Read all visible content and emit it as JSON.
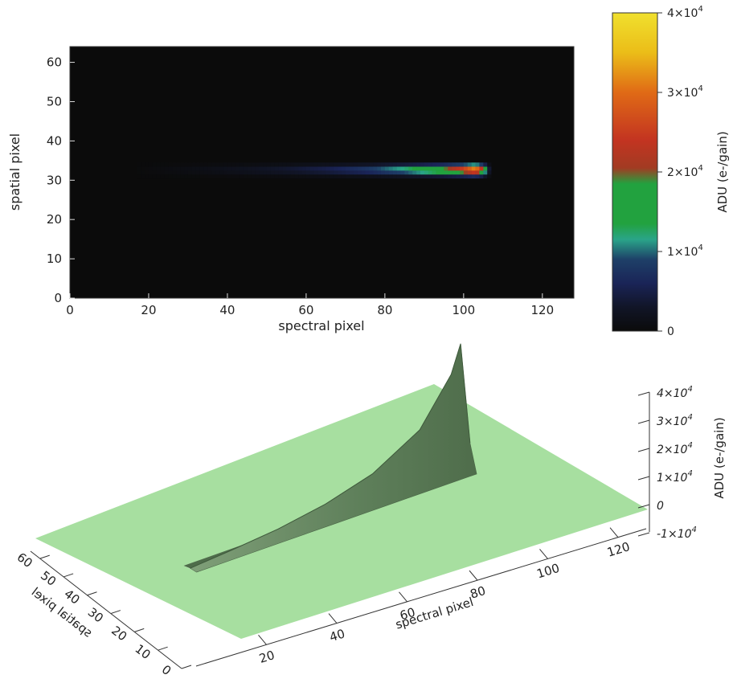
{
  "chart_data": [
    {
      "type": "heatmap",
      "xlabel": "spectral pixel",
      "ylabel": "spatial pixel",
      "xlim": [
        0,
        128
      ],
      "ylim": [
        0,
        64
      ],
      "xticks": [
        "0",
        "20",
        "40",
        "60",
        "80",
        "100",
        "120"
      ],
      "yticks": [
        "0",
        "10",
        "20",
        "30",
        "40",
        "50",
        "60"
      ],
      "background": "#0b0b0b",
      "trace": {
        "row_center": 32.5,
        "x_start": 17,
        "x_end": 107,
        "peak_x": 103,
        "peak_value": 38000,
        "profile": [
          {
            "x": 17,
            "v": 200
          },
          {
            "x": 25,
            "v": 800
          },
          {
            "x": 35,
            "v": 1500
          },
          {
            "x": 45,
            "v": 2600
          },
          {
            "x": 55,
            "v": 4000
          },
          {
            "x": 65,
            "v": 6000
          },
          {
            "x": 75,
            "v": 9000
          },
          {
            "x": 85,
            "v": 14000
          },
          {
            "x": 95,
            "v": 22000
          },
          {
            "x": 100,
            "v": 30000
          },
          {
            "x": 103,
            "v": 38000
          },
          {
            "x": 105,
            "v": 25000
          },
          {
            "x": 106,
            "v": 8000
          },
          {
            "x": 107,
            "v": 500
          }
        ]
      },
      "colorbar": {
        "label": "ADU (e-/gain)",
        "range": [
          0,
          40000
        ],
        "ticks": [
          {
            "v": 0,
            "text": "0"
          },
          {
            "v": 10000,
            "base": "1×10",
            "exp": "4"
          },
          {
            "v": 20000,
            "base": "2×10",
            "exp": "4"
          },
          {
            "v": 30000,
            "base": "3×10",
            "exp": "4"
          },
          {
            "v": 40000,
            "base": "4×10",
            "exp": "4"
          }
        ],
        "colors": [
          {
            "v": 0,
            "c": "#0b0b0b"
          },
          {
            "v": 3000,
            "c": "#111527"
          },
          {
            "v": 6000,
            "c": "#1a2457"
          },
          {
            "v": 9000,
            "c": "#1e4068"
          },
          {
            "v": 11500,
            "c": "#2aa489"
          },
          {
            "v": 13500,
            "c": "#22a23f"
          },
          {
            "v": 18500,
            "c": "#22a23f"
          },
          {
            "v": 20500,
            "c": "#a23b22"
          },
          {
            "v": 24000,
            "c": "#c33421"
          },
          {
            "v": 30000,
            "c": "#e06a16"
          },
          {
            "v": 35000,
            "c": "#ebbd18"
          },
          {
            "v": 40000,
            "c": "#f0e02e"
          }
        ]
      }
    },
    {
      "type": "surface",
      "xlabel": "spectral pixel",
      "ylabel": "spatial pixel",
      "zlabel": "ADU (e-/gain)",
      "xticks": [
        "20",
        "40",
        "60",
        "80",
        "100",
        "120"
      ],
      "yticks": [
        "0",
        "10",
        "20",
        "30",
        "40",
        "50",
        "60"
      ],
      "zticks": [
        {
          "v": 40000,
          "base": "4×10",
          "exp": "4"
        },
        {
          "v": 30000,
          "base": "3×10",
          "exp": "4"
        },
        {
          "v": 20000,
          "base": "2×10",
          "exp": "4"
        },
        {
          "v": 10000,
          "base": "1×10",
          "exp": "4"
        },
        {
          "v": 0,
          "text": "0"
        },
        {
          "v": -10000,
          "base": "-1×10",
          "exp": "4"
        }
      ],
      "plane_color": "#a7dfa0",
      "surface_color": "#5e7f5a",
      "profile": [
        {
          "x": 17,
          "v": 200
        },
        {
          "x": 30,
          "v": 1200
        },
        {
          "x": 45,
          "v": 2600
        },
        {
          "x": 60,
          "v": 5000
        },
        {
          "x": 75,
          "v": 9000
        },
        {
          "x": 90,
          "v": 17000
        },
        {
          "x": 100,
          "v": 30000
        },
        {
          "x": 103,
          "v": 38000
        },
        {
          "x": 106,
          "v": 8000
        }
      ]
    }
  ]
}
